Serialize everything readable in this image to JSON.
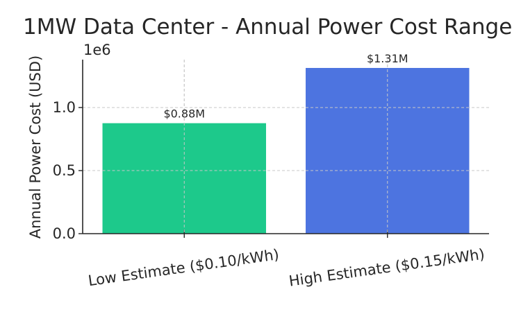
{
  "chart_data": {
    "type": "bar",
    "title": "1MW Data Center - Annual Power Cost Range",
    "xlabel": "",
    "ylabel": "Annual Power Cost (USD)",
    "y_offset_label": "1e6",
    "categories": [
      "Low Estimate ($0.10/kWh)",
      "High Estimate ($0.15/kWh)"
    ],
    "values": [
      876000,
      1314000
    ],
    "data_labels": [
      "$0.88M",
      "$1.31M"
    ],
    "colors": [
      "#1dc98b",
      "#4d74e0"
    ],
    "ylim": [
      0,
      1380000
    ],
    "yticks": [
      {
        "value": 0,
        "label": "0.0"
      },
      {
        "value": 500000,
        "label": "0.5"
      },
      {
        "value": 1000000,
        "label": "1.0"
      }
    ],
    "grid": true,
    "legend": "none"
  }
}
